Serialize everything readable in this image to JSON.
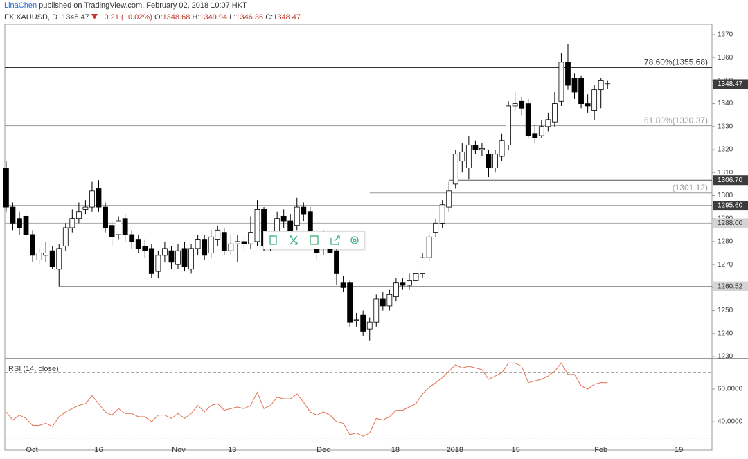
{
  "header": {
    "author": "LinaChen",
    "published": "published on TradingView.com, February 02, 2018 10:07 HKT",
    "symbol": "FX:XAUUSD, D",
    "last": "1348.47",
    "change": "−0.21 (−0.02%)",
    "ohlc": [
      {
        "key": "O:",
        "value": "1348.68"
      },
      {
        "key": "H:",
        "value": "1349.94"
      },
      {
        "key": "L:",
        "value": "1346.36"
      },
      {
        "key": "C:",
        "value": "1348.47"
      }
    ]
  },
  "chart_data": [
    {
      "type": "candlestick",
      "up_color": "#ffffff",
      "down_color": "#000000",
      "open": [
        1312,
        1295,
        1290,
        1291,
        1283,
        1272,
        1274,
        1276,
        1268,
        1278,
        1286,
        1290,
        1294,
        1295,
        1303,
        1295,
        1287,
        1283,
        1290,
        1283,
        1281,
        1278,
        1277,
        1267,
        1274,
        1276,
        1270,
        1277,
        1268,
        1277,
        1281,
        1275,
        1281,
        1284,
        1276,
        1279,
        1280,
        1279,
        1280,
        1294,
        1277,
        1281,
        1291,
        1289,
        1287,
        1295,
        1293,
        1282,
        1280,
        1277,
        1276,
        1262,
        1262,
        1246,
        1248,
        1242,
        1245,
        1255,
        1252,
        1256,
        1262,
        1261,
        1263,
        1266,
        1273,
        1284,
        1288,
        1295,
        1305,
        1315,
        1312,
        1322,
        1320,
        1318,
        1312,
        1317,
        1322,
        1339,
        1341,
        1340,
        1327,
        1326,
        1330,
        1332,
        1341,
        1358,
        1351,
        1351,
        1340,
        1337,
        1346,
        1348.68
      ],
      "high": [
        1315,
        1297,
        1293,
        1294,
        1285,
        1277,
        1280,
        1278,
        1279,
        1288,
        1294,
        1297,
        1298,
        1306,
        1306.7,
        1297,
        1289,
        1291,
        1292,
        1285,
        1283,
        1281,
        1279,
        1276,
        1280,
        1278,
        1279,
        1280,
        1279,
        1283,
        1283,
        1285,
        1287,
        1286,
        1283,
        1283,
        1282,
        1291,
        1298,
        1295,
        1284,
        1293,
        1294,
        1292,
        1299,
        1297,
        1295,
        1285,
        1285,
        1279,
        1278,
        1265,
        1263,
        1249,
        1250,
        1247,
        1257,
        1258,
        1259,
        1264,
        1264,
        1266,
        1268,
        1275,
        1284,
        1290,
        1298,
        1306,
        1320,
        1323,
        1326,
        1324,
        1323,
        1320,
        1320,
        1327,
        1341,
        1345,
        1343,
        1342,
        1331,
        1333,
        1336,
        1345,
        1362,
        1366,
        1353,
        1352,
        1344,
        1348,
        1351,
        1349.94
      ],
      "low": [
        1293,
        1285,
        1283,
        1281,
        1271,
        1270,
        1271,
        1268,
        1260.52,
        1276,
        1284,
        1288,
        1292,
        1293,
        1293,
        1284,
        1278,
        1281,
        1280,
        1277,
        1275,
        1273,
        1264,
        1264,
        1271,
        1268,
        1268,
        1267,
        1266,
        1274,
        1272,
        1273,
        1278,
        1274,
        1274,
        1271,
        1276,
        1277,
        1278,
        1276,
        1276,
        1279,
        1286,
        1282,
        1285,
        1289,
        1280,
        1272,
        1274,
        1272,
        1261,
        1258,
        1243,
        1243,
        1239,
        1237,
        1243,
        1250,
        1250,
        1254,
        1259,
        1259,
        1261,
        1264,
        1271,
        1282,
        1286,
        1293,
        1303,
        1310,
        1307,
        1318,
        1317,
        1308,
        1310,
        1315,
        1320,
        1337,
        1335,
        1325,
        1323,
        1325,
        1328,
        1330,
        1339,
        1346,
        1342,
        1338,
        1336,
        1333,
        1338,
        1346.36
      ],
      "close": [
        1295,
        1288,
        1286,
        1283,
        1274,
        1275,
        1275,
        1269,
        1277,
        1286,
        1290,
        1293,
        1295,
        1302,
        1295,
        1286,
        1282,
        1289,
        1283,
        1280,
        1277,
        1276,
        1266,
        1274,
        1277,
        1271,
        1276,
        1269,
        1277,
        1281,
        1274,
        1282,
        1285,
        1276,
        1279,
        1280,
        1279,
        1284,
        1294,
        1278,
        1280,
        1290,
        1289,
        1284,
        1295,
        1292,
        1284,
        1275,
        1277,
        1275,
        1266,
        1260,
        1245,
        1246,
        1241,
        1245,
        1255,
        1252,
        1257,
        1262,
        1261,
        1263,
        1266,
        1273,
        1282,
        1288,
        1296,
        1302,
        1318,
        1319,
        1322,
        1320,
        1320.5,
        1312,
        1318,
        1324,
        1339,
        1340,
        1338,
        1326,
        1325,
        1330,
        1333,
        1340,
        1358,
        1348,
        1345,
        1340,
        1339,
        1346,
        1350,
        1348.47
      ],
      "xlim": [
        -0.2,
        106.8
      ],
      "xticks": [
        {
          "value": 3.9,
          "label": "Oct"
        },
        {
          "value": 14,
          "label": "16"
        },
        {
          "value": 26.1,
          "label": "Nov"
        },
        {
          "value": 34.2,
          "label": "13"
        },
        {
          "value": 48,
          "label": "Dec"
        },
        {
          "value": 58.9,
          "label": "18"
        },
        {
          "value": 67.9,
          "label": "2018"
        },
        {
          "value": 77.1,
          "label": "15"
        },
        {
          "value": 90,
          "label": "Feb"
        },
        {
          "value": 101.8,
          "label": "19"
        }
      ],
      "ylim": [
        1229.4,
        1374.5
      ],
      "yticks": [
        1230,
        1240,
        1250,
        1260,
        1270,
        1280,
        1290,
        1300,
        1310,
        1320,
        1330,
        1340,
        1350,
        1360,
        1370
      ],
      "levels": [
        {
          "value": 1348.47,
          "label": "1348.47",
          "color": "#333333",
          "style": "dotted",
          "box": "dark"
        },
        {
          "value": 1306.7,
          "label": "1306.70",
          "color": "#555555",
          "style": "solid",
          "box": "dark",
          "from": 67
        },
        {
          "value": 1295.6,
          "label": "1295.60",
          "color": "#222222",
          "style": "solid",
          "box": "dark"
        },
        {
          "value": 1288,
          "label": "1288.00",
          "color": "#aaaaaa",
          "style": "solid",
          "box": "light"
        },
        {
          "value": 1260.52,
          "label": "1260.52",
          "color": "#888888",
          "style": "solid",
          "box": "light",
          "from": 8
        }
      ],
      "fib": [
        {
          "value": 1355.68,
          "label": "78.60%(1355.68)",
          "color": "#333333"
        },
        {
          "value": 1330.37,
          "label": "61.80%(1330.37)",
          "color": "#999999"
        },
        {
          "value": 1301.12,
          "label": "(1301.12)",
          "color": "#999999",
          "from": 55
        }
      ]
    },
    {
      "type": "line",
      "title": "RSI (14, close)",
      "color": "#e07050",
      "values": [
        46,
        41,
        44,
        42,
        37.7,
        37.7,
        39,
        37,
        43,
        46,
        48,
        50,
        51,
        56,
        51,
        46,
        44,
        48,
        45,
        45,
        43,
        43,
        40,
        44,
        44,
        42,
        45,
        42,
        45,
        50,
        46,
        50,
        51,
        47,
        48,
        49,
        48,
        50,
        58,
        48,
        50,
        55,
        54,
        54,
        57,
        52,
        46,
        44,
        46,
        44,
        40,
        39,
        32,
        33,
        31,
        33,
        42,
        41,
        43,
        47,
        47,
        49,
        51,
        57,
        61,
        64,
        67,
        71,
        75,
        73,
        74,
        73,
        72,
        66,
        68,
        70,
        76,
        76,
        74,
        64,
        65,
        66,
        68,
        71,
        76,
        69,
        69,
        62,
        60,
        63,
        64,
        64
      ],
      "ylim": [
        22.6,
        78.7
      ],
      "yticks": [
        {
          "value": 40,
          "label": "40.0000"
        },
        {
          "value": 60,
          "label": "60.0000"
        }
      ],
      "bands": [
        70,
        30
      ]
    }
  ]
}
